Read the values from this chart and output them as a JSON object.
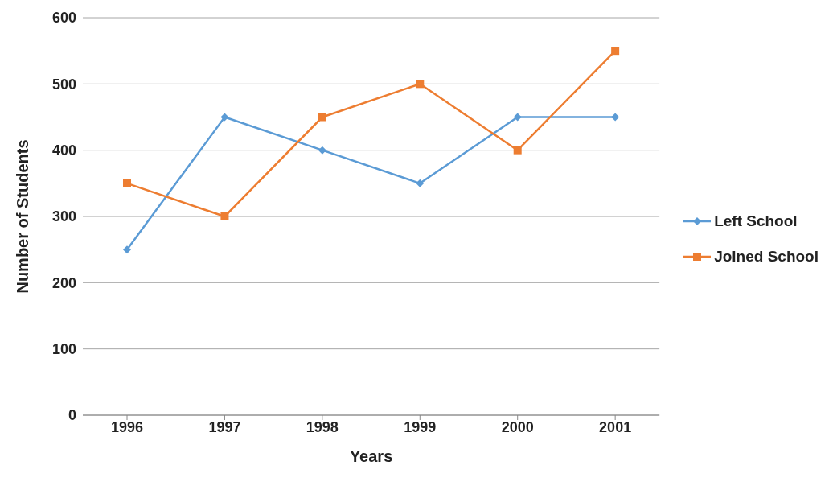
{
  "chart_data": {
    "type": "line",
    "xlabel": "Years",
    "ylabel": "Number of Students",
    "categories": [
      "1996",
      "1997",
      "1998",
      "1999",
      "2000",
      "2001"
    ],
    "series": [
      {
        "name": "Left School",
        "color": "#5b9bd5",
        "marker": "diamond",
        "values": [
          250,
          450,
          400,
          350,
          450,
          450
        ]
      },
      {
        "name": "Joined School",
        "color": "#ed7d31",
        "marker": "square",
        "values": [
          350,
          300,
          450,
          500,
          400,
          550
        ]
      }
    ],
    "ylim": [
      0,
      600
    ],
    "yticks": [
      0,
      100,
      200,
      300,
      400,
      500,
      600
    ],
    "grid": "y",
    "legend": "right",
    "line_style": "solid"
  }
}
